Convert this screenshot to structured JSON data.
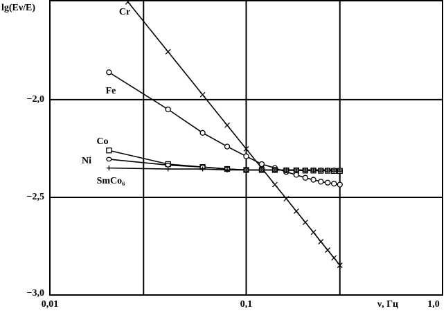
{
  "chart_data": {
    "type": "line",
    "y_label": "lg(Eν/E)",
    "x_label": "ν, Гц",
    "xlog": true,
    "xlim": [
      0.01,
      1
    ],
    "xticks": [
      {
        "value": 0.01,
        "label": "0,01"
      },
      {
        "value": 0.1,
        "label": "0,1"
      },
      {
        "value": 1,
        "label": "1,0"
      }
    ],
    "xgrid": [
      0.03,
      0.1,
      0.3,
      1
    ],
    "ylim": [
      -3,
      -1.49
    ],
    "yticks": [
      {
        "value": -2,
        "label": "−2,0"
      },
      {
        "value": -2.5,
        "label": "−2,5"
      },
      {
        "value": -3,
        "label": "−3,0"
      }
    ],
    "grid": true,
    "series": [
      {
        "name": "Cr",
        "color": "#000000",
        "marker": "cross",
        "x": [
          0.025,
          0.04,
          0.06,
          0.08,
          0.1,
          0.12,
          0.14,
          0.16,
          0.18,
          0.2,
          0.22,
          0.24,
          0.26,
          0.28,
          0.3
        ],
        "values": [
          -1.5,
          -1.755,
          -1.975,
          -2.131,
          -2.252,
          -2.351,
          -2.435,
          -2.507,
          -2.571,
          -2.628,
          -2.679,
          -2.727,
          -2.77,
          -2.81,
          -2.848
        ]
      },
      {
        "name": "Fe",
        "color": "#000000",
        "marker": "circle",
        "x": [
          0.02,
          0.04,
          0.06,
          0.08,
          0.1,
          0.12,
          0.14,
          0.16,
          0.18,
          0.2,
          0.22,
          0.24,
          0.26,
          0.28,
          0.3
        ],
        "values": [
          -1.86,
          -2.05,
          -2.17,
          -2.24,
          -2.29,
          -2.33,
          -2.35,
          -2.37,
          -2.385,
          -2.4,
          -2.41,
          -2.42,
          -2.425,
          -2.43,
          -2.435
        ]
      },
      {
        "name": "Co",
        "color": "#000000",
        "marker": "square",
        "x": [
          0.02,
          0.04,
          0.06,
          0.08,
          0.1,
          0.12,
          0.14,
          0.16,
          0.18,
          0.2,
          0.22,
          0.24,
          0.26,
          0.28,
          0.3
        ],
        "values": [
          -2.26,
          -2.33,
          -2.345,
          -2.355,
          -2.36,
          -2.36,
          -2.36,
          -2.362,
          -2.362,
          -2.363,
          -2.363,
          -2.364,
          -2.364,
          -2.365,
          -2.365
        ]
      },
      {
        "name": "Ni",
        "color": "#000000",
        "marker": "diamond",
        "x": [
          0.02,
          0.04,
          0.06,
          0.08,
          0.1,
          0.12,
          0.14,
          0.16,
          0.18,
          0.2,
          0.22,
          0.24,
          0.26,
          0.28,
          0.3
        ],
        "values": [
          -2.305,
          -2.335,
          -2.345,
          -2.355,
          -2.36,
          -2.36,
          -2.36,
          -2.36,
          -2.36,
          -2.36,
          -2.36,
          -2.36,
          -2.36,
          -2.36,
          -2.36
        ]
      },
      {
        "name": "SmCo₆",
        "color": "#000000",
        "marker": "plus",
        "x": [
          0.02,
          0.04,
          0.06,
          0.08,
          0.1,
          0.12,
          0.14,
          0.16,
          0.18,
          0.2,
          0.22,
          0.24,
          0.26,
          0.28,
          0.3
        ],
        "values": [
          -2.35,
          -2.355,
          -2.355,
          -2.36,
          -2.36,
          -2.36,
          -2.36,
          -2.36,
          -2.36,
          -2.36,
          -2.36,
          -2.36,
          -2.36,
          -2.36,
          -2.36
        ]
      }
    ]
  }
}
